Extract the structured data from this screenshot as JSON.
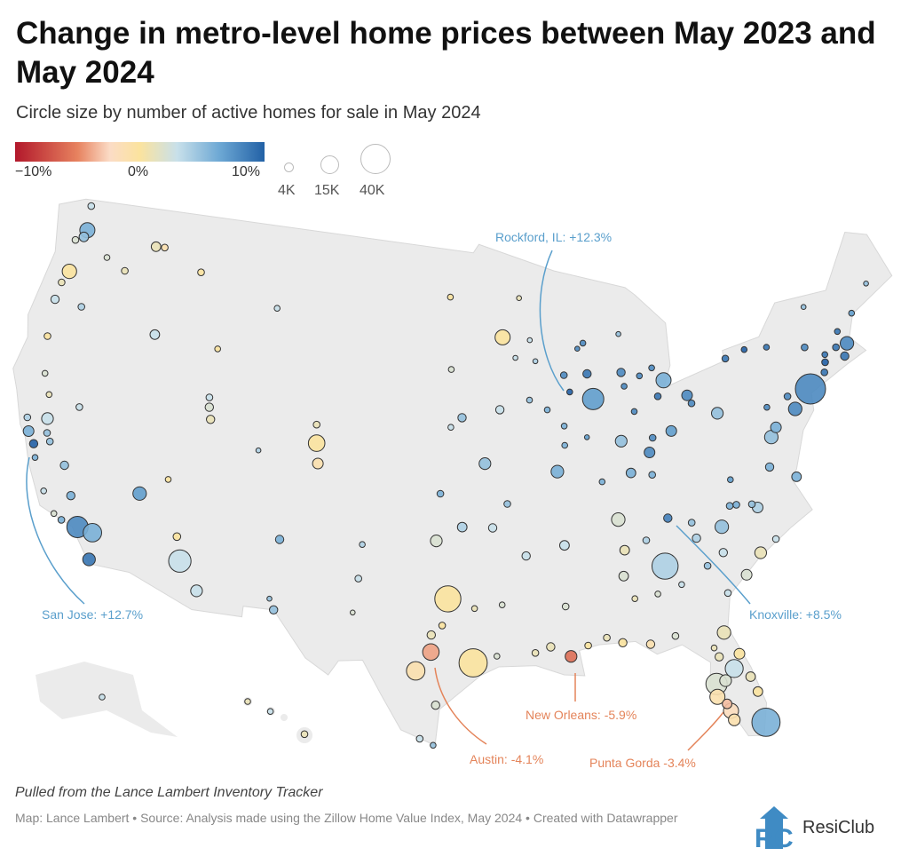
{
  "title": "Change in metro-level home prices between May 2023 and May 2024",
  "subtitle": "Circle size by number of active homes for sale in May 2024",
  "legend": {
    "color_labels": [
      "−10%",
      "0%",
      "10%"
    ],
    "size_labels": [
      "4K",
      "15K",
      "40K"
    ],
    "size_values_k": [
      4,
      15,
      40
    ],
    "color_domain": [
      -10,
      10
    ],
    "colors": {
      "neg": "#b2182b",
      "mid": "#fbe39e",
      "pos": "#2261a6"
    }
  },
  "annotations": {
    "rockford": "Rockford, IL: +12.3%",
    "san_jose": "San Jose: +12.7%",
    "knoxville": "Knoxville: +8.5%",
    "new_orleans": "New Orleans: -5.9%",
    "austin": "Austin: -4.1%",
    "punta_gorda": "Punta Gorda -3.4%"
  },
  "annotation_colors": {
    "positive": "#5a9fcc",
    "negative": "#e4845a"
  },
  "footer": {
    "note": "Pulled from the Lance Lambert Inventory Tracker",
    "credits": "Map: Lance Lambert • Source: Analysis made using the Zillow Home Value Index, May 2024 • Created with Datawrapper",
    "logo": "ResiClub"
  },
  "metros": [
    [
      -122.3,
      47.6,
      6,
      10
    ],
    [
      -122.4,
      47.25,
      5,
      4
    ],
    [
      -122.5,
      48.75,
      3,
      2
    ],
    [
      -122.9,
      47.0,
      2,
      2
    ],
    [
      -117.4,
      47.65,
      1,
      4
    ],
    [
      -122.7,
      45.5,
      0,
      9
    ],
    [
      -123.0,
      44.9,
      1,
      2
    ],
    [
      -123.1,
      44.05,
      3,
      3
    ],
    [
      -121.3,
      44.05,
      4,
      2
    ],
    [
      -122.9,
      42.3,
      0,
      2
    ],
    [
      -116.2,
      43.6,
      3,
      4
    ],
    [
      -112.0,
      43.5,
      0,
      1.5
    ],
    [
      -114.0,
      46.9,
      0,
      2
    ],
    [
      -116.8,
      47.7,
      -1,
      2
    ],
    [
      -119.1,
      46.2,
      1,
      2
    ],
    [
      -120.5,
      46.6,
      2,
      1.5
    ],
    [
      -122.4,
      40.6,
      2,
      1.5
    ],
    [
      -121.8,
      39.7,
      1,
      1.5
    ],
    [
      -121.5,
      38.6,
      3,
      6
    ],
    [
      -122.4,
      37.8,
      6,
      5
    ],
    [
      -121.9,
      37.3,
      12.7,
      3
    ],
    [
      -121.3,
      37.95,
      5,
      2
    ],
    [
      -121.0,
      37.6,
      5,
      2
    ],
    [
      -119.8,
      36.7,
      5,
      3
    ],
    [
      -119.0,
      35.4,
      6,
      3
    ],
    [
      -122.7,
      38.4,
      4,
      2
    ],
    [
      -121.6,
      36.7,
      6,
      1.5
    ],
    [
      -120.6,
      35.3,
      3,
      1.5
    ],
    [
      -119.7,
      34.4,
      2,
      1.5
    ],
    [
      -119.2,
      34.2,
      6,
      2
    ],
    [
      -118.2,
      34.05,
      8,
      20
    ],
    [
      -117.3,
      33.95,
      6,
      15
    ],
    [
      -117.15,
      32.7,
      9,
      7
    ],
    [
      -119.8,
      39.5,
      3,
      2
    ],
    [
      -115.1,
      36.2,
      7,
      8
    ],
    [
      -112.1,
      33.45,
      3,
      22
    ],
    [
      -110.9,
      32.2,
      3,
      6
    ],
    [
      -112.5,
      34.55,
      0,
      2.5
    ],
    [
      -111.9,
      40.75,
      2,
      3
    ],
    [
      -111.7,
      40.2,
      1,
      3
    ],
    [
      -112.0,
      41.2,
      3,
      2
    ],
    [
      -113.6,
      37.1,
      0,
      1.5
    ],
    [
      -104.99,
      39.74,
      0,
      12
    ],
    [
      -104.8,
      38.8,
      -1,
      5
    ],
    [
      -105.1,
      40.6,
      1,
      2
    ],
    [
      -108.5,
      39.1,
      4,
      1
    ],
    [
      -106.6,
      35.1,
      6,
      3
    ],
    [
      -106.5,
      31.8,
      5,
      3
    ],
    [
      -106.8,
      32.3,
      5,
      1
    ],
    [
      -108.5,
      45.8,
      3,
      1.5
    ],
    [
      -96.8,
      46.9,
      0,
      1.5
    ],
    [
      -96.7,
      43.5,
      2,
      1.5
    ],
    [
      -96.0,
      41.25,
      5,
      3
    ],
    [
      -96.7,
      40.8,
      3,
      1.5
    ],
    [
      -93.3,
      44.98,
      0,
      10
    ],
    [
      -92.5,
      44.0,
      3,
      1
    ],
    [
      -93.6,
      41.6,
      3,
      3
    ],
    [
      -91.7,
      42.0,
      5,
      1.5
    ],
    [
      -90.6,
      41.5,
      6,
      1.5
    ],
    [
      -94.6,
      39.1,
      5,
      6
    ],
    [
      -97.3,
      37.7,
      6,
      2
    ],
    [
      -95.99,
      36.15,
      4,
      4
    ],
    [
      -97.5,
      35.5,
      2,
      6
    ],
    [
      -93.3,
      37.2,
      5,
      2
    ],
    [
      -90.2,
      38.6,
      6,
      7
    ],
    [
      -92.3,
      34.75,
      3,
      3
    ],
    [
      -94.2,
      36.1,
      3,
      3
    ],
    [
      -96.8,
      32.8,
      0,
      30
    ],
    [
      -97.7,
      30.3,
      -4.1,
      12
    ],
    [
      -98.5,
      29.4,
      -1,
      15
    ],
    [
      -95.4,
      29.8,
      0,
      35
    ],
    [
      -97.4,
      27.8,
      2,
      3
    ],
    [
      -98.2,
      26.2,
      3,
      2
    ],
    [
      -97.5,
      25.9,
      5,
      1.5
    ],
    [
      -97.7,
      31.1,
      1,
      3
    ],
    [
      -97.1,
      31.55,
      0,
      2
    ],
    [
      -95.3,
      32.35,
      1,
      1.5
    ],
    [
      -101.9,
      33.6,
      3,
      2
    ],
    [
      -101.8,
      35.2,
      4,
      1.5
    ],
    [
      -102.1,
      32.0,
      2,
      1
    ],
    [
      -94.1,
      30.1,
      2,
      1.5
    ],
    [
      -93.75,
      32.5,
      2,
      1.5
    ],
    [
      -91.15,
      30.45,
      1,
      3
    ],
    [
      -92.0,
      30.2,
      1,
      2
    ],
    [
      -90.07,
      29.95,
      -5.9,
      6
    ],
    [
      -89.1,
      30.4,
      0,
      2
    ],
    [
      -90.2,
      32.3,
      2,
      2
    ],
    [
      -90.05,
      35.15,
      3,
      4
    ],
    [
      -86.8,
      36.15,
      2,
      8
    ],
    [
      -85.3,
      35.05,
      4,
      2
    ],
    [
      -83.9,
      35.96,
      8.5,
      3
    ],
    [
      -86.6,
      34.7,
      1,
      4
    ],
    [
      -86.8,
      33.5,
      2,
      4
    ],
    [
      -86.3,
      32.4,
      1,
      1.5
    ],
    [
      -88.05,
      30.7,
      1,
      2
    ],
    [
      -87.2,
      30.4,
      0,
      3
    ],
    [
      -85.7,
      30.2,
      -1,
      3
    ],
    [
      -84.3,
      30.45,
      2,
      2
    ],
    [
      -81.65,
      30.3,
      1,
      8
    ],
    [
      -81.0,
      29.2,
      0,
      5
    ],
    [
      -81.4,
      28.55,
      3,
      14
    ],
    [
      -81.95,
      28.05,
      2,
      6
    ],
    [
      -82.45,
      27.95,
      2,
      20
    ],
    [
      -82.5,
      27.35,
      -1,
      10
    ],
    [
      -82.05,
      26.95,
      -3.4,
      4
    ],
    [
      -81.9,
      26.6,
      -2,
      10
    ],
    [
      -81.8,
      26.15,
      -1,
      6
    ],
    [
      -80.35,
      27.3,
      0,
      4
    ],
    [
      -80.6,
      28.05,
      1,
      4
    ],
    [
      -80.2,
      25.8,
      6,
      35
    ],
    [
      -82.1,
      29.2,
      1,
      3
    ],
    [
      -82.3,
      29.65,
      1,
      1.5
    ],
    [
      -81.1,
      32.1,
      3,
      2
    ],
    [
      -84.4,
      33.75,
      4,
      30
    ],
    [
      -82.0,
      33.5,
      5,
      2
    ],
    [
      -83.6,
      32.8,
      3,
      1.5
    ],
    [
      -84.99,
      32.5,
      2,
      1.5
    ],
    [
      -79.9,
      32.8,
      2,
      5
    ],
    [
      -78.9,
      33.7,
      1,
      6
    ],
    [
      -81.0,
      34.0,
      3,
      3
    ],
    [
      -82.4,
      34.85,
      4,
      3
    ],
    [
      -80.85,
      35.2,
      5,
      8
    ],
    [
      -78.6,
      35.8,
      4,
      5
    ],
    [
      -78.9,
      36.0,
      5,
      2
    ],
    [
      -79.8,
      36.1,
      6,
      2
    ],
    [
      -80.2,
      36.1,
      6,
      2
    ],
    [
      -82.55,
      35.6,
      5,
      2
    ],
    [
      -77.9,
      34.2,
      3,
      2
    ],
    [
      -76.0,
      36.85,
      6,
      4
    ],
    [
      -77.45,
      37.55,
      6,
      3
    ],
    [
      -79.9,
      37.3,
      7,
      1.5
    ],
    [
      -77.0,
      38.9,
      5,
      8
    ],
    [
      -76.6,
      39.3,
      6,
      5
    ],
    [
      -75.2,
      39.95,
      8,
      8
    ],
    [
      -76.9,
      40.3,
      8,
      1.5
    ],
    [
      -75.5,
      40.6,
      8,
      2
    ],
    [
      -80.0,
      40.45,
      5,
      6
    ],
    [
      -74.0,
      40.7,
      8,
      40
    ],
    [
      -72.7,
      41.75,
      10,
      2
    ],
    [
      -72.9,
      41.3,
      9,
      2
    ],
    [
      -71.4,
      41.8,
      9,
      3
    ],
    [
      -71.05,
      42.35,
      8,
      8
    ],
    [
      -71.8,
      42.3,
      9,
      2
    ],
    [
      -72.6,
      42.1,
      9,
      1.5
    ],
    [
      -73.75,
      42.65,
      8,
      2
    ],
    [
      -76.15,
      43.05,
      9,
      1.5
    ],
    [
      -77.6,
      43.15,
      10,
      1.5
    ],
    [
      -78.9,
      42.9,
      9,
      2
    ],
    [
      -70.25,
      43.65,
      7,
      1.5
    ],
    [
      -71.45,
      43.0,
      9,
      1.5
    ],
    [
      -73.2,
      44.5,
      5,
      1
    ],
    [
      -68.8,
      44.8,
      5,
      1
    ],
    [
      -81.7,
      41.5,
      8,
      5
    ],
    [
      -83.0,
      39.96,
      7,
      5
    ],
    [
      -84.5,
      39.1,
      8,
      5
    ],
    [
      -84.2,
      39.76,
      8,
      2
    ],
    [
      -83.55,
      41.65,
      9,
      2
    ],
    [
      -81.5,
      41.1,
      8,
      2
    ],
    [
      -83.05,
      42.35,
      6,
      10
    ],
    [
      -85.7,
      42.96,
      8,
      3
    ],
    [
      -84.55,
      42.7,
      8,
      1.5
    ],
    [
      -83.7,
      43.0,
      8,
      1.5
    ],
    [
      -85.6,
      42.3,
      8,
      1.5
    ],
    [
      -85.6,
      44.76,
      5,
      1
    ],
    [
      -86.15,
      39.77,
      5,
      6
    ],
    [
      -85.14,
      41.08,
      8,
      1.5
    ],
    [
      -85.76,
      38.25,
      6,
      4
    ],
    [
      -84.5,
      38.05,
      6,
      2
    ],
    [
      -87.55,
      37.97,
      6,
      1.5
    ],
    [
      -87.65,
      41.85,
      7,
      20
    ],
    [
      -89.1,
      42.27,
      12.3,
      1.5
    ],
    [
      -87.9,
      43.05,
      9,
      3
    ],
    [
      -89.4,
      43.07,
      8,
      2
    ],
    [
      -88.0,
      44.5,
      8,
      1.5
    ],
    [
      -88.4,
      44.26,
      8,
      1
    ],
    [
      -89.6,
      40.7,
      6,
      1.5
    ],
    [
      -89.65,
      39.8,
      6,
      1.5
    ],
    [
      -88.24,
      40.1,
      7,
      1
    ],
    [
      -92.1,
      46.8,
      1,
      1
    ],
    [
      -91.5,
      44.8,
      3,
      1
    ],
    [
      -91.2,
      43.8,
      4,
      1
    ]
  ],
  "hawaii_metros": [
    [
      -159.5,
      22.0,
      1,
      1.5
    ],
    [
      -157.9,
      21.3,
      3,
      1.5
    ],
    [
      -155.5,
      19.7,
      1,
      2
    ]
  ],
  "alaska_metros": [
    [
      -149.9,
      61.2,
      3,
      1.5
    ]
  ]
}
